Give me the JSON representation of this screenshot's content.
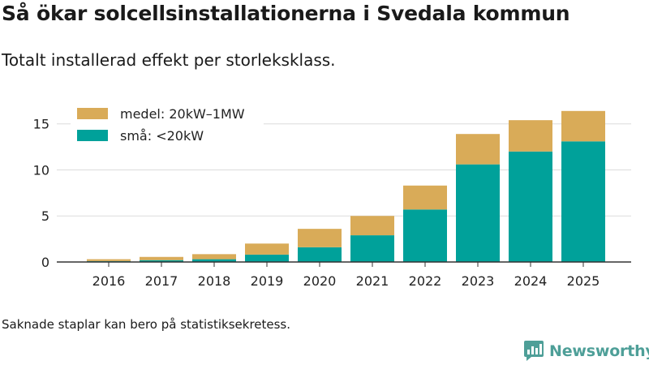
{
  "header": {
    "title": "Så ökar solcellsinstallationerna i Svedala kommun",
    "subtitle": "Totalt installerad effekt per storleksklass."
  },
  "footer": {
    "note": "Saknade staplar kan bero på statistiksekretess.",
    "brand": "Newsworthy"
  },
  "icons": {
    "brand_logo": "newsworthy-logo-icon"
  },
  "chart_data": {
    "type": "bar",
    "stacked": true,
    "categories": [
      "2016",
      "2017",
      "2018",
      "2019",
      "2020",
      "2021",
      "2022",
      "2023",
      "2024",
      "2025"
    ],
    "series": [
      {
        "name": "små: <20kW",
        "color": "#00a19a",
        "values": [
          0.1,
          0.2,
          0.3,
          0.8,
          1.6,
          2.9,
          5.7,
          10.6,
          12.0,
          13.1
        ]
      },
      {
        "name": "medel: 20kW–1MW",
        "color": "#d9ab58",
        "values": [
          0.2,
          0.35,
          0.55,
          1.2,
          2.0,
          2.1,
          2.6,
          3.3,
          3.4,
          3.3
        ]
      }
    ],
    "yticks": [
      0,
      5,
      10,
      15
    ],
    "ylim": [
      0,
      17
    ],
    "xlabel": "",
    "ylabel": "",
    "grid": true,
    "legend_position": "top-left"
  }
}
